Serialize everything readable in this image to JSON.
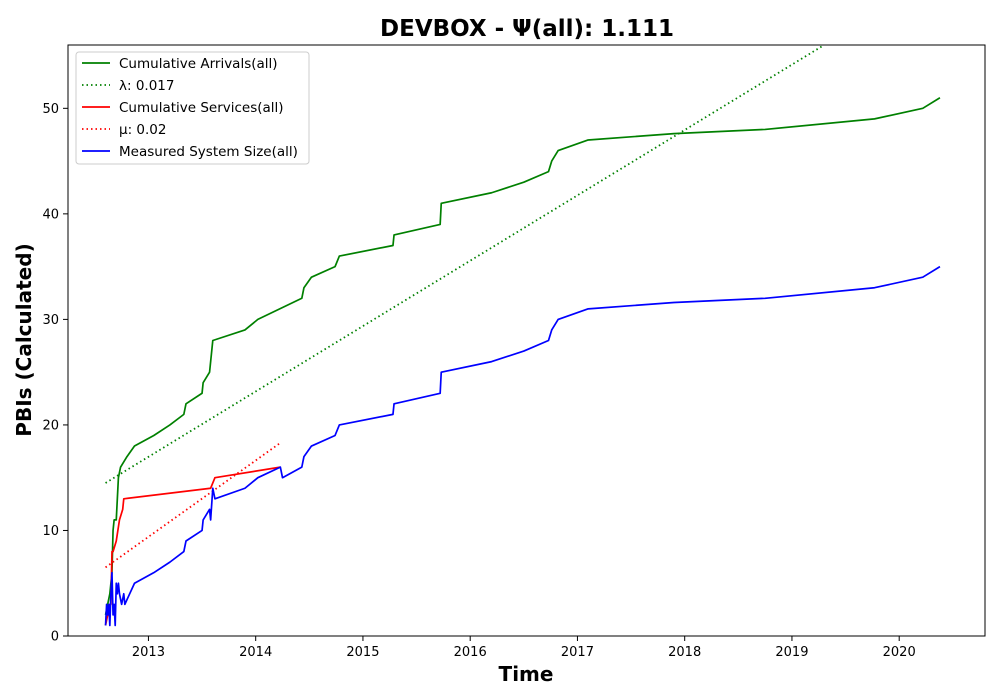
{
  "chart_data": {
    "type": "line",
    "title": "DEVBOX -  Ψ(all): 1.111",
    "xlabel": "Time",
    "ylabel": "PBIs (Calculated)",
    "xlim": [
      2012.25,
      2020.8
    ],
    "ylim": [
      0,
      56
    ],
    "x_ticks": [
      2013,
      2014,
      2015,
      2016,
      2017,
      2018,
      2019,
      2020
    ],
    "x_tick_labels": [
      "2013",
      "2014",
      "2015",
      "2016",
      "2017",
      "2018",
      "2019",
      "2020"
    ],
    "y_ticks": [
      0,
      10,
      20,
      30,
      40,
      50
    ],
    "y_tick_labels": [
      "0",
      "10",
      "20",
      "30",
      "40",
      "50"
    ],
    "grid": false,
    "legend_position": "top-left",
    "series": [
      {
        "name": "Cumulative Arrivals(all)",
        "color": "#008000",
        "style": "solid",
        "x": [
          2012.6,
          2012.62,
          2012.64,
          2012.66,
          2012.67,
          2012.68,
          2012.7,
          2012.72,
          2012.74,
          2012.8,
          2012.87,
          2013.05,
          2013.2,
          2013.33,
          2013.35,
          2013.5,
          2013.51,
          2013.57,
          2013.6,
          2013.9,
          2014.02,
          2014.43,
          2014.45,
          2014.52,
          2014.74,
          2014.78,
          2015.28,
          2015.29,
          2015.72,
          2015.73,
          2016.2,
          2016.5,
          2016.73,
          2016.76,
          2016.82,
          2017.1,
          2017.9,
          2018.75,
          2019.77,
          2020.22,
          2020.38
        ],
        "y": [
          2,
          3,
          4,
          6,
          10,
          11,
          11,
          15,
          16,
          17,
          18,
          19,
          20,
          21,
          22,
          23,
          24,
          25,
          28,
          29,
          30,
          32,
          33,
          34,
          35,
          36,
          37,
          38,
          39,
          41,
          42,
          43,
          44,
          45,
          46,
          47,
          47.6,
          48,
          49,
          50,
          51
        ]
      },
      {
        "name": "λ: 0.017",
        "color": "#008000",
        "style": "dotted",
        "x": [
          2012.6,
          2019.3
        ],
        "y": [
          14.5,
          56
        ]
      },
      {
        "name": "Cumulative Services(all)",
        "color": "#ff0000",
        "style": "solid",
        "x": [
          2012.6,
          2012.62,
          2012.63,
          2012.64,
          2012.65,
          2012.66,
          2012.67,
          2012.7,
          2012.73,
          2012.76,
          2012.77,
          2013.58,
          2013.62,
          2014.23
        ],
        "y": [
          1,
          2,
          2,
          3,
          3,
          8,
          8,
          9,
          11,
          12,
          13,
          14,
          15,
          16
        ]
      },
      {
        "name": "μ: 0.02",
        "color": "#ff0000",
        "style": "dotted",
        "x": [
          2012.6,
          2014.23
        ],
        "y": [
          6.5,
          18.3
        ]
      },
      {
        "name": "Measured System Size(all)",
        "color": "#0000ff",
        "style": "solid",
        "x": [
          2012.6,
          2012.61,
          2012.62,
          2012.63,
          2012.64,
          2012.65,
          2012.66,
          2012.67,
          2012.68,
          2012.69,
          2012.7,
          2012.71,
          2012.72,
          2012.73,
          2012.75,
          2012.77,
          2012.78,
          2012.87,
          2013.05,
          2013.2,
          2013.33,
          2013.35,
          2013.5,
          2013.51,
          2013.57,
          2013.58,
          2013.6,
          2013.62,
          2013.9,
          2014.02,
          2014.23,
          2014.25,
          2014.43,
          2014.45,
          2014.52,
          2014.74,
          2014.78,
          2015.28,
          2015.29,
          2015.72,
          2015.73,
          2016.2,
          2016.5,
          2016.73,
          2016.76,
          2016.82,
          2017.1,
          2017.9,
          2018.75,
          2019.77,
          2020.22,
          2020.38
        ],
        "y": [
          1,
          3,
          2,
          3,
          1,
          4,
          6,
          2,
          3,
          1,
          5,
          4,
          5,
          4,
          3,
          4,
          3,
          5,
          6,
          7,
          8,
          9,
          10,
          11,
          12,
          11,
          14,
          13,
          14,
          15,
          16,
          15,
          16,
          17,
          18,
          19,
          20,
          21,
          22,
          23,
          25,
          26,
          27,
          28,
          29,
          30,
          31,
          31.6,
          32,
          33,
          34,
          35
        ]
      }
    ]
  }
}
